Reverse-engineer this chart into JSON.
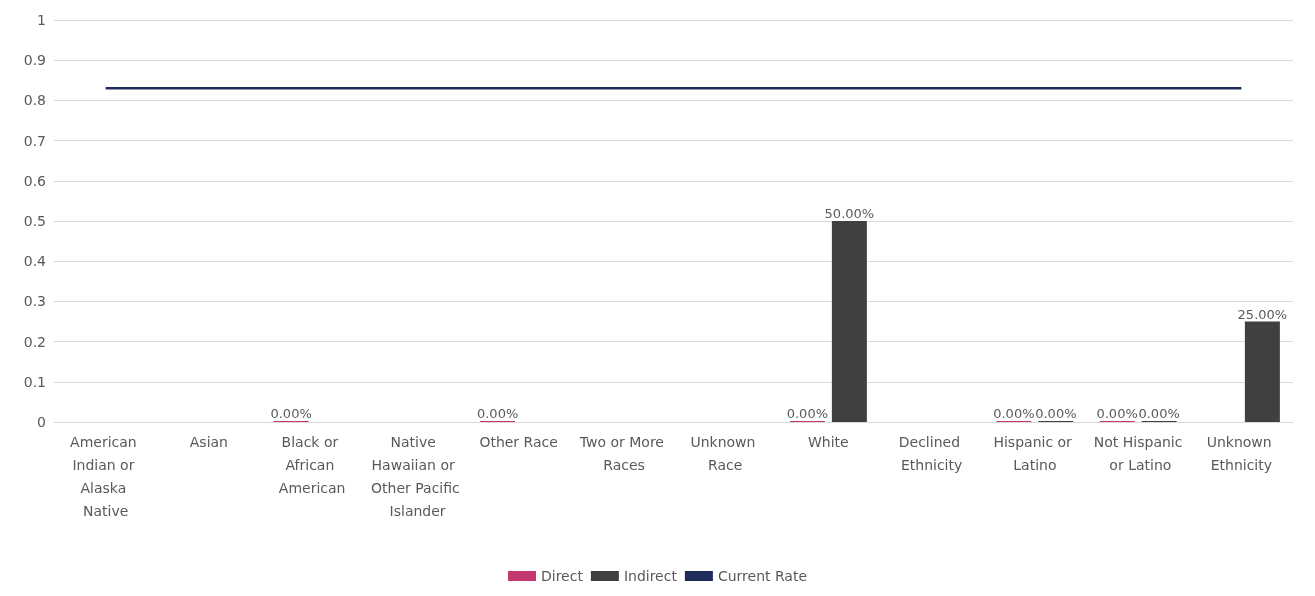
{
  "chart_data": {
    "type": "bar",
    "categories": [
      "American Indian or Alaska Native",
      "Asian",
      "Black or African American",
      "Native Hawaiian or Other Pacific Islander",
      "Other Race",
      "Two or More Races",
      "Unknown Race",
      "White",
      "Declined Ethnicity",
      "Hispanic or Latino",
      "Not Hispanic or Latino",
      "Unknown Ethnicity"
    ],
    "series": [
      {
        "name": "Direct",
        "color": "#c3366e",
        "values": [
          null,
          null,
          0,
          null,
          0,
          null,
          null,
          0,
          null,
          0,
          0,
          null
        ],
        "value_labels": [
          null,
          null,
          "0.00%",
          null,
          "0.00%",
          null,
          null,
          "0.00%",
          null,
          "0.00%",
          "0.00%",
          null
        ]
      },
      {
        "name": "Indirect",
        "color": "#404040",
        "values": [
          null,
          null,
          null,
          null,
          null,
          null,
          null,
          0.5,
          null,
          0,
          0,
          0.25
        ],
        "value_labels": [
          null,
          null,
          null,
          null,
          null,
          null,
          null,
          "50.00%",
          null,
          "0.00%",
          "0.00%",
          "25.00%"
        ]
      },
      {
        "name": "Current Rate",
        "type": "line",
        "color": "#1f2d5a",
        "values": [
          0.83,
          0.83,
          0.83,
          0.83,
          0.83,
          0.83,
          0.83,
          0.83,
          0.83,
          0.83,
          0.83,
          0.83
        ]
      }
    ],
    "ylim": [
      0,
      1
    ],
    "yticks": [
      0,
      0.1,
      0.2,
      0.3,
      0.4,
      0.5,
      0.6,
      0.7,
      0.8,
      0.9,
      1
    ],
    "grid": "y",
    "legend": "bottom",
    "marker": "none"
  }
}
